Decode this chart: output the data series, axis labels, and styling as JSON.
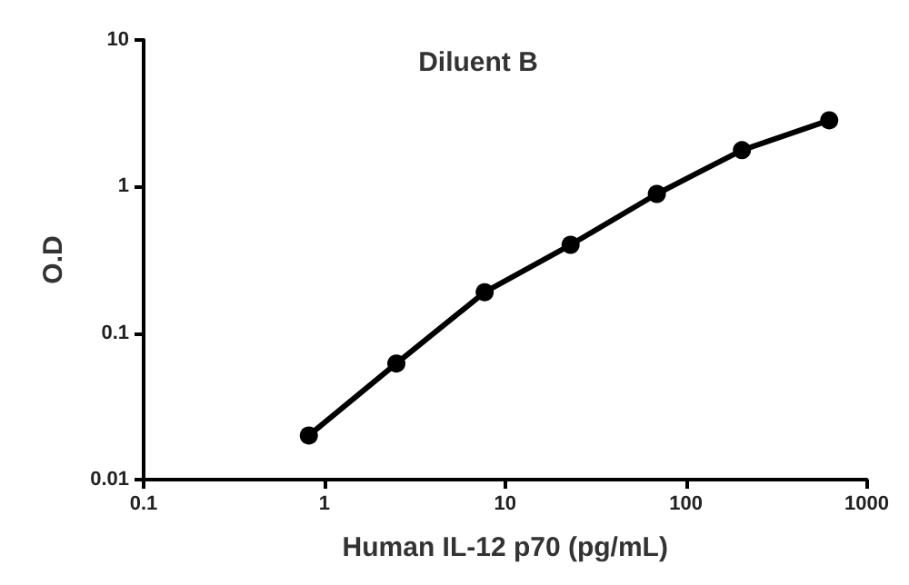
{
  "chart_data": {
    "type": "line",
    "title": "Diluent B",
    "xlabel": "Human IL-12 p70 (pg/mL)",
    "ylabel": "O.D",
    "x": [
      0.82,
      2.5,
      7.7,
      23,
      69,
      204,
      620
    ],
    "series": [
      {
        "color": "#000000",
        "values": [
          0.02,
          0.062,
          0.19,
          0.4,
          0.89,
          1.77,
          2.83
        ]
      }
    ],
    "log": "xy",
    "xlim": [
      0.1,
      1000
    ],
    "ylim": [
      0.01,
      10
    ],
    "xticks": [
      0.1,
      1,
      10,
      100,
      1000
    ],
    "yticks": [
      0.01,
      0.1,
      1,
      10
    ],
    "marker": "circle",
    "line_style": "solid"
  }
}
